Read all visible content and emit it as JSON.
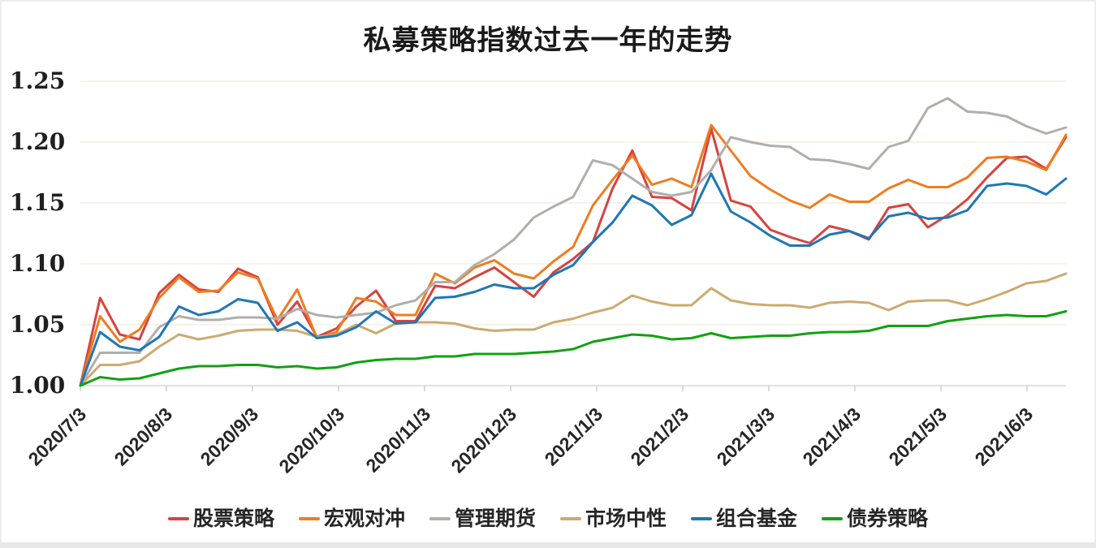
{
  "chart_data": {
    "type": "line",
    "title": "私募策略指数过去一年的走势",
    "xlabel": "",
    "ylabel": "",
    "x_frequency": "weekly",
    "x_tick_labels": [
      "2020/7/3",
      "2020/8/3",
      "2020/9/3",
      "2020/10/3",
      "2020/11/3",
      "2020/12/3",
      "2021/1/3",
      "2021/2/3",
      "2021/3/3",
      "2021/4/3",
      "2021/5/3",
      "2021/6/3"
    ],
    "y_axis": {
      "min": 1.0,
      "max": 1.25,
      "step": 0.05,
      "tick_labels": [
        "1.00",
        "1.05",
        "1.10",
        "1.15",
        "1.20",
        "1.25"
      ]
    },
    "grid": "horizontal",
    "legend_position": "bottom",
    "series": [
      {
        "name": "股票策略",
        "color": "#d8423f",
        "values": [
          1.0,
          1.072,
          1.042,
          1.038,
          1.076,
          1.091,
          1.079,
          1.077,
          1.096,
          1.089,
          1.05,
          1.069,
          1.04,
          1.047,
          1.065,
          1.078,
          1.053,
          1.053,
          1.082,
          1.08,
          1.089,
          1.097,
          1.085,
          1.073,
          1.093,
          1.104,
          1.118,
          1.162,
          1.193,
          1.155,
          1.154,
          1.144,
          1.211,
          1.152,
          1.147,
          1.128,
          1.122,
          1.117,
          1.131,
          1.127,
          1.12,
          1.146,
          1.149,
          1.13,
          1.14,
          1.153,
          1.171,
          1.187,
          1.188,
          1.178,
          1.204
        ]
      },
      {
        "name": "宏观对冲",
        "color": "#ef7c20",
        "values": [
          1.0,
          1.057,
          1.036,
          1.046,
          1.072,
          1.089,
          1.077,
          1.078,
          1.093,
          1.088,
          1.054,
          1.079,
          1.039,
          1.044,
          1.072,
          1.069,
          1.058,
          1.058,
          1.092,
          1.084,
          1.097,
          1.103,
          1.092,
          1.088,
          1.102,
          1.114,
          1.148,
          1.169,
          1.189,
          1.165,
          1.17,
          1.163,
          1.214,
          1.193,
          1.172,
          1.161,
          1.152,
          1.146,
          1.157,
          1.151,
          1.151,
          1.162,
          1.169,
          1.163,
          1.163,
          1.171,
          1.187,
          1.188,
          1.184,
          1.177,
          1.206
        ]
      },
      {
        "name": "管理期货",
        "color": "#b1aeac",
        "values": [
          1.0,
          1.027,
          1.027,
          1.027,
          1.048,
          1.057,
          1.054,
          1.054,
          1.056,
          1.056,
          1.055,
          1.063,
          1.058,
          1.056,
          1.058,
          1.06,
          1.066,
          1.07,
          1.085,
          1.085,
          1.099,
          1.108,
          1.12,
          1.138,
          1.147,
          1.155,
          1.185,
          1.181,
          1.17,
          1.159,
          1.156,
          1.159,
          1.177,
          1.204,
          1.2,
          1.197,
          1.196,
          1.186,
          1.185,
          1.182,
          1.178,
          1.196,
          1.201,
          1.228,
          1.236,
          1.225,
          1.224,
          1.221,
          1.213,
          1.207,
          1.212
        ]
      },
      {
        "name": "市场中性",
        "color": "#ccaa70",
        "values": [
          1.0,
          1.017,
          1.017,
          1.02,
          1.032,
          1.042,
          1.038,
          1.041,
          1.045,
          1.046,
          1.046,
          1.045,
          1.04,
          1.042,
          1.05,
          1.043,
          1.051,
          1.052,
          1.052,
          1.051,
          1.047,
          1.045,
          1.046,
          1.046,
          1.052,
          1.055,
          1.06,
          1.064,
          1.074,
          1.069,
          1.066,
          1.066,
          1.08,
          1.07,
          1.067,
          1.066,
          1.066,
          1.064,
          1.068,
          1.069,
          1.068,
          1.062,
          1.069,
          1.07,
          1.07,
          1.066,
          1.071,
          1.077,
          1.084,
          1.086,
          1.092
        ]
      },
      {
        "name": "组合基金",
        "color": "#1f77b4",
        "values": [
          1.0,
          1.044,
          1.032,
          1.029,
          1.04,
          1.065,
          1.058,
          1.061,
          1.071,
          1.068,
          1.045,
          1.052,
          1.039,
          1.041,
          1.048,
          1.061,
          1.051,
          1.052,
          1.072,
          1.073,
          1.077,
          1.083,
          1.08,
          1.08,
          1.091,
          1.099,
          1.118,
          1.134,
          1.156,
          1.148,
          1.132,
          1.14,
          1.174,
          1.143,
          1.134,
          1.123,
          1.115,
          1.115,
          1.124,
          1.127,
          1.121,
          1.139,
          1.142,
          1.137,
          1.138,
          1.144,
          1.164,
          1.166,
          1.164,
          1.157,
          1.17
        ]
      },
      {
        "name": "债券策略",
        "color": "#12a112",
        "values": [
          1.0,
          1.007,
          1.005,
          1.006,
          1.01,
          1.014,
          1.016,
          1.016,
          1.017,
          1.017,
          1.015,
          1.016,
          1.014,
          1.015,
          1.019,
          1.021,
          1.022,
          1.022,
          1.024,
          1.024,
          1.026,
          1.026,
          1.026,
          1.027,
          1.028,
          1.03,
          1.036,
          1.039,
          1.042,
          1.041,
          1.038,
          1.039,
          1.043,
          1.039,
          1.04,
          1.041,
          1.041,
          1.043,
          1.044,
          1.044,
          1.045,
          1.049,
          1.049,
          1.049,
          1.053,
          1.055,
          1.057,
          1.058,
          1.057,
          1.057,
          1.061
        ]
      }
    ]
  }
}
